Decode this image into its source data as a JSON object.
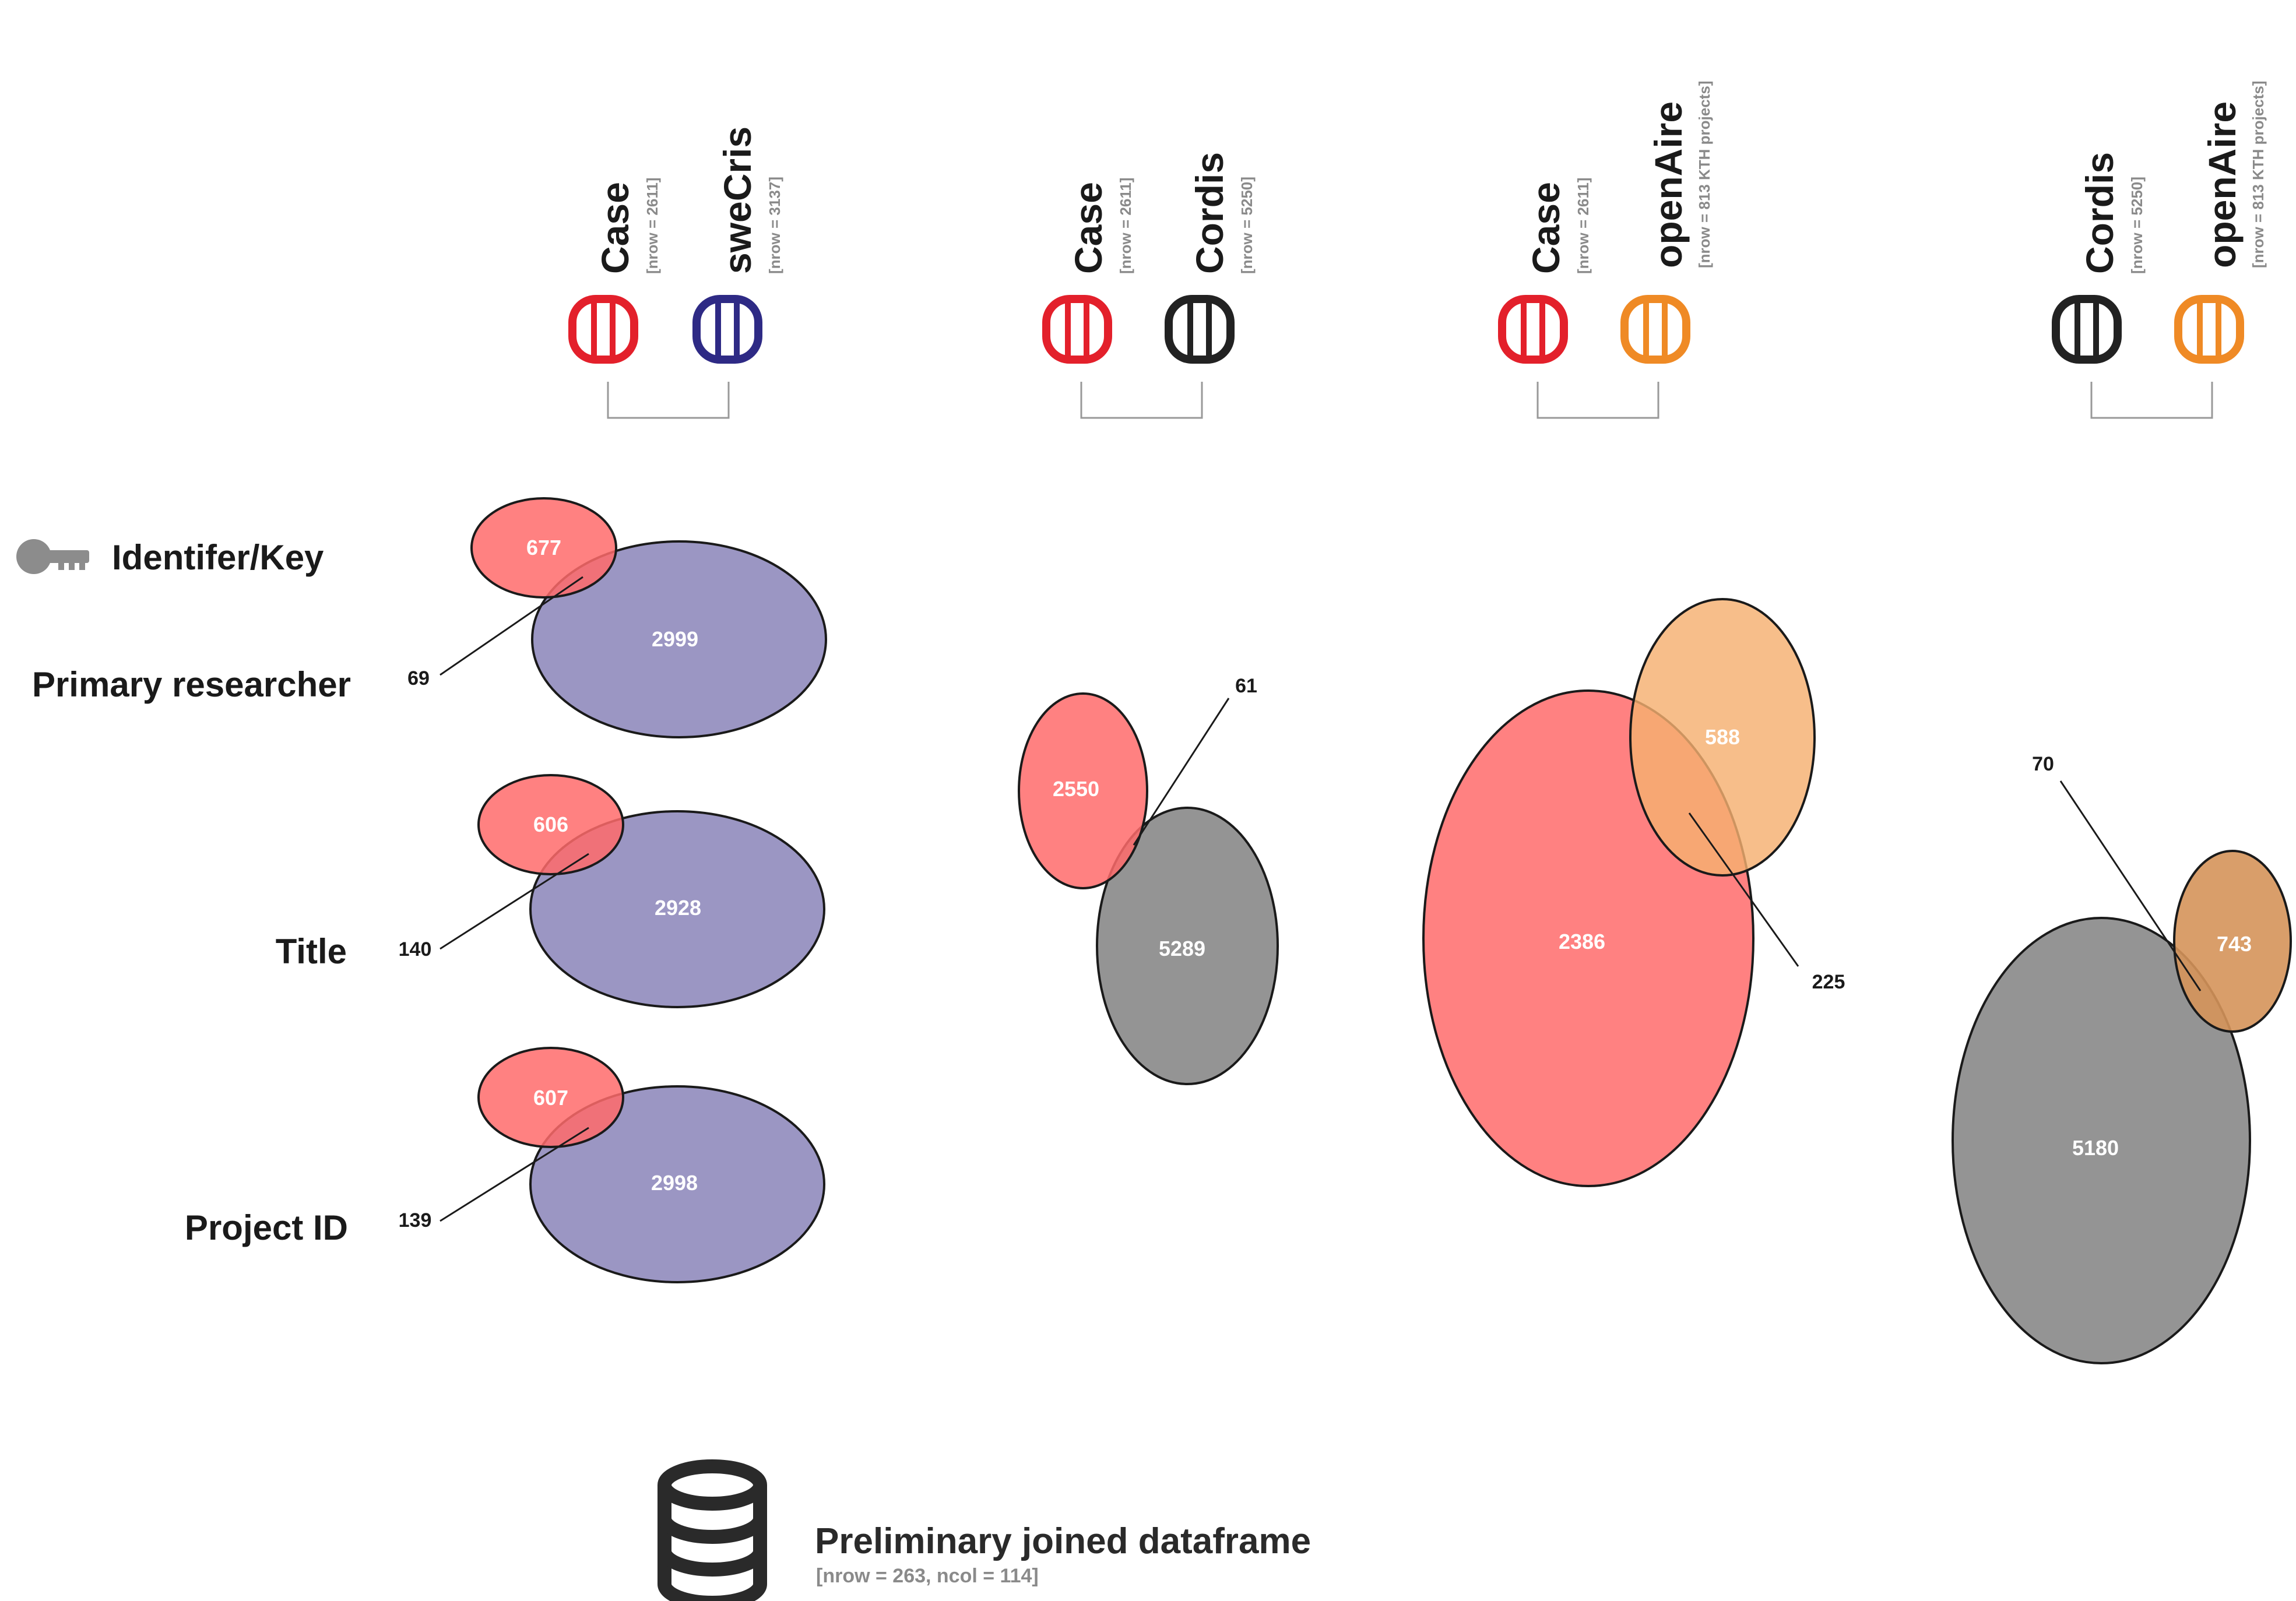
{
  "colors": {
    "case": "#e3202b",
    "swecris": "#2e2a85",
    "cordis": "#222222",
    "openaire": "#ef8a25",
    "case_fill": "#ff6b6b",
    "swecris_fill": "#8a84b8",
    "cordis_fill": "#7d7d7d",
    "openaire_fill": "#f5b070",
    "key_icon": "#8c8c8c"
  },
  "comparisons": [
    {
      "left": {
        "name": "Case",
        "meta": "[nrow = 2611]",
        "icon": "database-icon",
        "color": "case"
      },
      "right": {
        "name": "sweCris",
        "meta": "[nrow = 3137]",
        "icon": "database-icon",
        "color": "swecris"
      }
    },
    {
      "left": {
        "name": "Case",
        "meta": "[nrow = 2611]",
        "icon": "database-icon",
        "color": "case"
      },
      "right": {
        "name": "Cordis",
        "meta": "[nrow = 5250]",
        "icon": "database-icon",
        "color": "cordis"
      }
    },
    {
      "left": {
        "name": "Case",
        "meta": "[nrow = 2611]",
        "icon": "database-icon",
        "color": "case"
      },
      "right": {
        "name": "openAire",
        "meta": "[nrow = 813 KTH projects]",
        "icon": "database-icon",
        "color": "openaire"
      }
    },
    {
      "left": {
        "name": "Cordis",
        "meta": "[nrow = 5250]",
        "icon": "database-icon",
        "color": "cordis"
      },
      "right": {
        "name": "openAire",
        "meta": "[nrow = 813 KTH projects]",
        "icon": "database-icon",
        "color": "openaire"
      }
    }
  ],
  "key_legend": {
    "icon": "key-icon",
    "label": "Identifer/Key"
  },
  "row_labels": [
    "Primary researcher",
    "Title",
    "Project ID"
  ],
  "venns": [
    {
      "pair": "Case vs sweCris",
      "key": "Primary researcher",
      "left_only": "677",
      "right_only": "2999",
      "overlap": "69"
    },
    {
      "pair": "Case vs sweCris",
      "key": "Title",
      "left_only": "606",
      "right_only": "2928",
      "overlap": "140"
    },
    {
      "pair": "Case vs sweCris",
      "key": "Project ID",
      "left_only": "607",
      "right_only": "2998",
      "overlap": "139"
    },
    {
      "pair": "Case vs Cordis",
      "left_only": "2550",
      "right_only": "5289",
      "overlap": "61"
    },
    {
      "pair": "Case vs openAire",
      "left_only": "2386",
      "right_only": "588",
      "overlap": "225"
    },
    {
      "pair": "Cordis vs openAire",
      "left_only": "5180",
      "right_only": "743",
      "overlap": "70"
    }
  ],
  "footer": {
    "icon": "database-icon",
    "title": "Preliminary joined dataframe",
    "meta": "[nrow = 263, ncol = 114]"
  }
}
